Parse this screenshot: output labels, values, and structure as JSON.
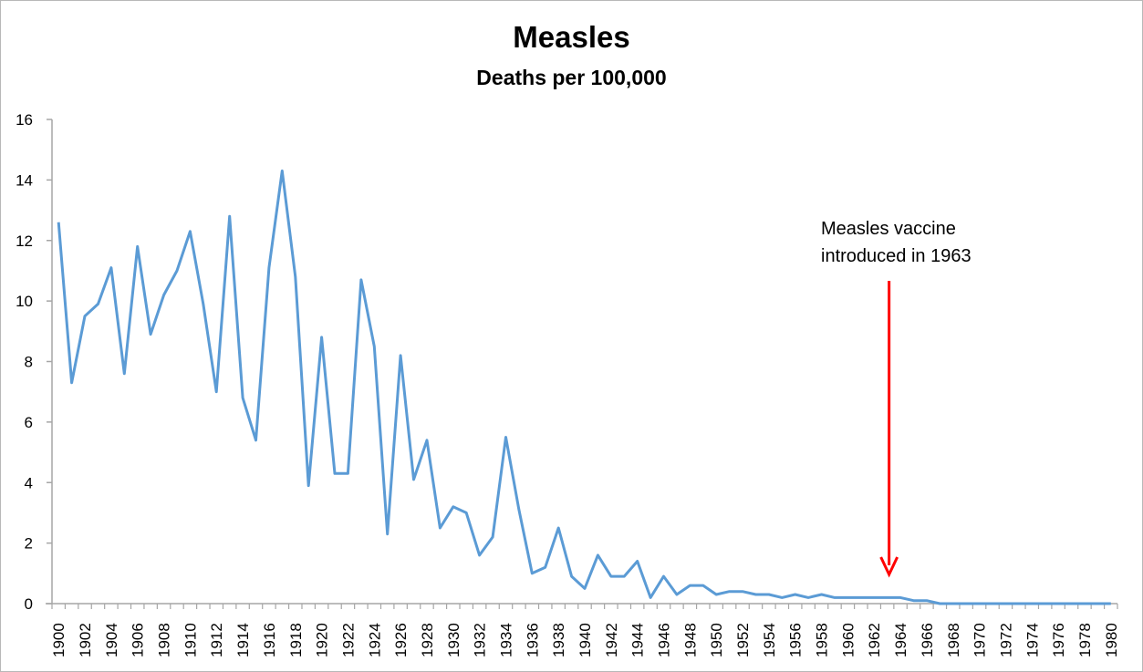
{
  "chart_data": {
    "type": "line",
    "title": "Measles",
    "subtitle": "Deaths per 100,000",
    "xlabel": "",
    "ylabel": "",
    "ylim": [
      0,
      16
    ],
    "yticks": [
      0,
      2,
      4,
      6,
      8,
      10,
      12,
      14,
      16
    ],
    "grid": false,
    "line_color": "#5B9BD5",
    "x": [
      1900,
      1901,
      1902,
      1903,
      1904,
      1905,
      1906,
      1907,
      1908,
      1909,
      1910,
      1911,
      1912,
      1913,
      1914,
      1915,
      1916,
      1917,
      1918,
      1919,
      1920,
      1921,
      1922,
      1923,
      1924,
      1925,
      1926,
      1927,
      1928,
      1929,
      1930,
      1931,
      1932,
      1933,
      1934,
      1935,
      1936,
      1937,
      1938,
      1939,
      1940,
      1941,
      1942,
      1943,
      1944,
      1945,
      1946,
      1947,
      1948,
      1949,
      1950,
      1951,
      1952,
      1953,
      1954,
      1955,
      1956,
      1957,
      1958,
      1959,
      1960,
      1961,
      1962,
      1963,
      1964,
      1965,
      1966,
      1967,
      1968,
      1969,
      1970,
      1971,
      1972,
      1973,
      1974,
      1975,
      1976,
      1977,
      1978,
      1979,
      1980
    ],
    "series": [
      {
        "name": "Deaths per 100,000",
        "values": [
          12.6,
          7.3,
          9.5,
          9.9,
          11.1,
          7.6,
          11.8,
          8.9,
          10.2,
          11.0,
          12.3,
          9.9,
          7.0,
          12.8,
          6.8,
          5.4,
          11.1,
          14.3,
          10.8,
          3.9,
          8.8,
          4.3,
          4.3,
          10.7,
          8.5,
          2.3,
          8.2,
          4.1,
          5.4,
          2.5,
          3.2,
          3.0,
          1.6,
          2.2,
          5.5,
          3.1,
          1.0,
          1.2,
          2.5,
          0.9,
          0.5,
          1.6,
          0.9,
          0.9,
          1.4,
          0.2,
          0.9,
          0.3,
          0.6,
          0.6,
          0.3,
          0.4,
          0.4,
          0.3,
          0.3,
          0.2,
          0.3,
          0.2,
          0.3,
          0.2,
          0.2,
          0.2,
          0.2,
          0.2,
          0.2,
          0.1,
          0.1,
          0,
          0,
          0,
          0,
          0,
          0,
          0,
          0,
          0,
          0,
          0,
          0,
          0,
          0
        ]
      }
    ],
    "annotation": {
      "lines": [
        "Measles vaccine",
        "introduced in 1963"
      ],
      "arrow_year": 1963,
      "arrow_color": "#FF0000"
    }
  }
}
